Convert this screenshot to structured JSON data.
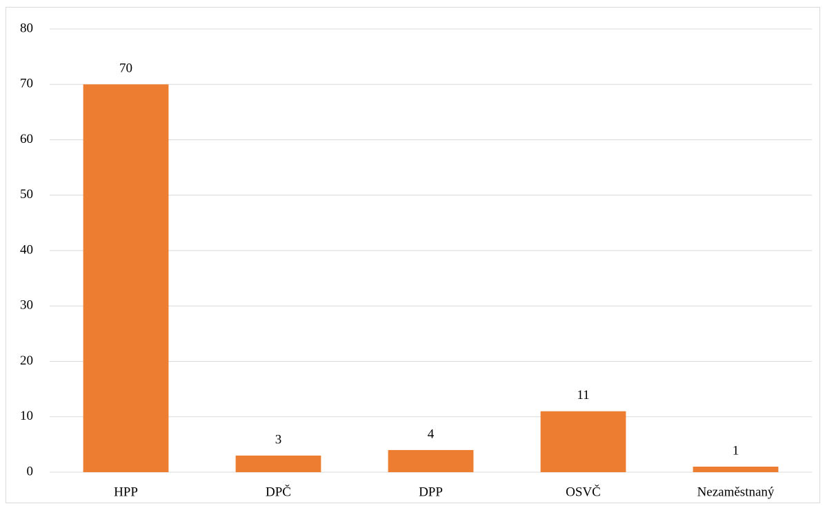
{
  "chart_data": {
    "type": "bar",
    "categories": [
      "HPP",
      "DPČ",
      "DPP",
      "OSVČ",
      "Nezaměstnaný"
    ],
    "values": [
      70,
      3,
      4,
      11,
      1
    ],
    "color": "#ed7d31",
    "ylim": [
      0,
      80
    ],
    "yticks": [
      0,
      10,
      20,
      30,
      40,
      50,
      60,
      70,
      80
    ],
    "grid": true,
    "data_labels": true
  }
}
